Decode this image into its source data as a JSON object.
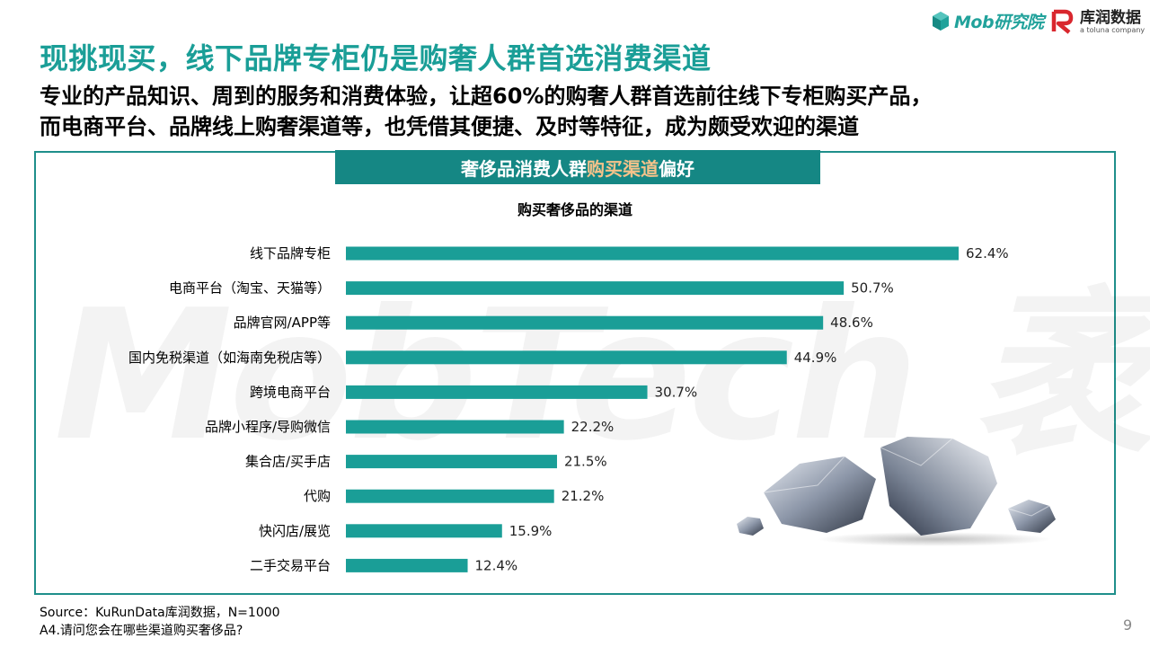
{
  "header": {
    "logo_mob": "Mob研究院",
    "logo_kr_name": "库润数据",
    "logo_kr_sub": "a toluna company"
  },
  "title": "现挑现买，线下品牌专柜仍是购奢人群首选消费渠道",
  "subtitle": {
    "line1": "专业的产品知识、周到的服务和消费体验，让超60%的购奢人群首选前往线下专柜购买产品，",
    "line2": "而电商平台、品牌线上购奢渠道等，也凭借其便捷、及时等特征，成为颇受欢迎的渠道"
  },
  "banner": {
    "prefix": "奢侈品消费人群",
    "highlight": "购买渠道",
    "suffix": "偏好"
  },
  "watermark": "MobTech 袤博",
  "colors": {
    "bar": "#1a9e97",
    "title": "#1a9e97",
    "banner": "#158784",
    "highlight": "#f5c28a"
  },
  "chart_data": {
    "type": "bar",
    "orientation": "horizontal",
    "title": "购买奢侈品的渠道",
    "categories": [
      "线下品牌专柜",
      "电商平台（淘宝、天猫等）",
      "品牌官网/APP等",
      "国内免税渠道（如海南免税店等）",
      "跨境电商平台",
      "品牌小程序/导购微信",
      "集合店/买手店",
      "代购",
      "快闪店/展览",
      "二手交易平台"
    ],
    "values": [
      62.4,
      50.7,
      48.6,
      44.9,
      30.7,
      22.2,
      21.5,
      21.2,
      15.9,
      12.4
    ],
    "value_labels": [
      "62.4%",
      "50.7%",
      "48.6%",
      "44.9%",
      "30.7%",
      "22.2%",
      "21.5%",
      "21.2%",
      "15.9%",
      "12.4%"
    ],
    "xlim": [
      0,
      62.4
    ],
    "grid": false,
    "legend": "none"
  },
  "footer": {
    "source": "Source：KuRunData库润数据，N=1000",
    "question": "A4.请问您会在哪些渠道购买奢侈品?",
    "page": "9"
  }
}
